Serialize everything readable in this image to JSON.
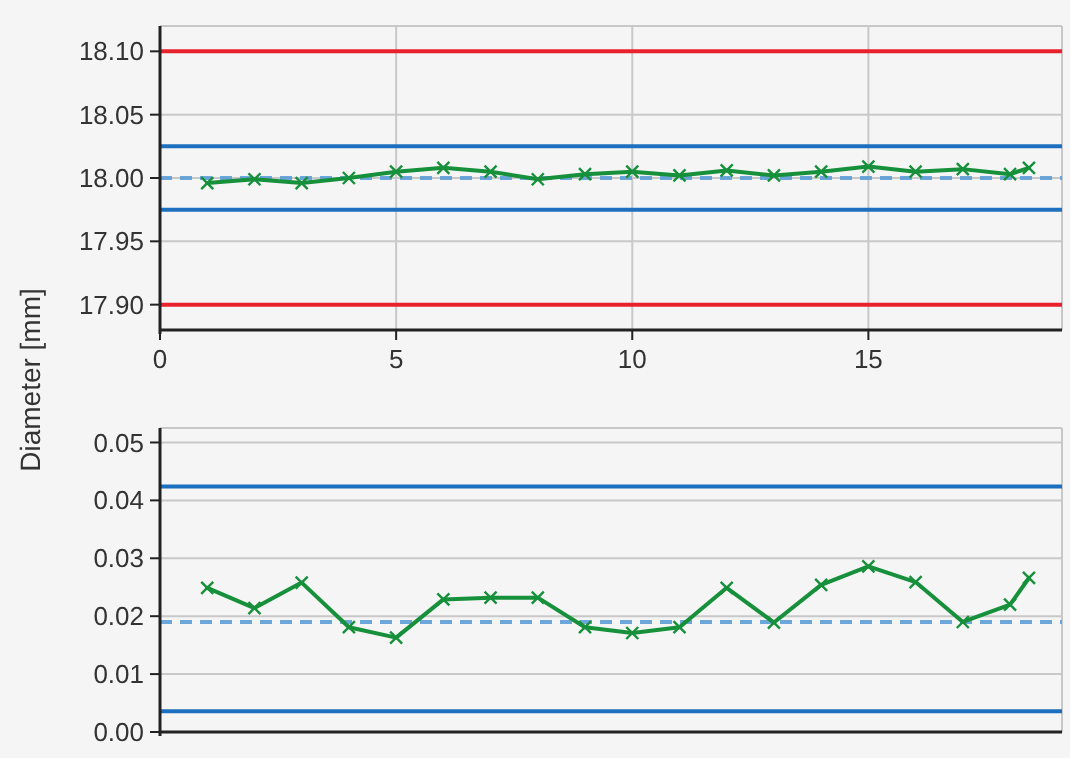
{
  "chart_data": [
    {
      "type": "line",
      "x": [
        1,
        2,
        3,
        4,
        5,
        6,
        7,
        8,
        9,
        10,
        11,
        12,
        13,
        14,
        15,
        16,
        17,
        18,
        18.4
      ],
      "series": [
        {
          "color": "#16903a",
          "values": [
            17.996,
            17.999,
            17.996,
            18.0,
            18.005,
            18.008,
            18.005,
            17.999,
            18.003,
            18.005,
            18.002,
            18.006,
            18.002,
            18.005,
            18.009,
            18.005,
            18.007,
            18.003,
            18.008
          ]
        }
      ],
      "marker": "cross",
      "xlim": [
        0,
        19.1
      ],
      "xticks": [
        0,
        5,
        10,
        15
      ],
      "ylim": [
        17.88,
        18.12
      ],
      "yticks": [
        {
          "value": 17.9,
          "label": "17.90"
        },
        {
          "value": 17.95,
          "label": "17.95"
        },
        {
          "value": 18.0,
          "label": "18.00"
        },
        {
          "value": 18.05,
          "label": "18.05"
        },
        {
          "value": 18.1,
          "label": "18.10"
        }
      ],
      "grid": true,
      "ref_lines": [
        {
          "axis": "y",
          "value": 18.1,
          "color": "#e8222d",
          "line_style": "solid"
        },
        {
          "axis": "y",
          "value": 17.9,
          "color": "#e8222d",
          "line_style": "solid"
        },
        {
          "axis": "y",
          "value": 18.025,
          "color": "#1d6fbf",
          "line_style": "solid"
        },
        {
          "axis": "y",
          "value": 17.975,
          "color": "#1d6fbf",
          "line_style": "solid"
        },
        {
          "axis": "y",
          "value": 18.0,
          "color": "#5d9fd8",
          "line_style": "dashed"
        }
      ]
    },
    {
      "type": "line",
      "x": [
        1,
        2,
        3,
        4,
        5,
        6,
        7,
        8,
        9,
        10,
        11,
        12,
        13,
        14,
        15,
        16,
        17,
        18,
        18.4
      ],
      "series": [
        {
          "color": "#16903a",
          "values": [
            0.0249,
            0.0214,
            0.0258,
            0.0181,
            0.0163,
            0.0229,
            0.0232,
            0.0232,
            0.0181,
            0.0171,
            0.0181,
            0.0249,
            0.0189,
            0.0254,
            0.0286,
            0.0259,
            0.019,
            0.022,
            0.0266
          ]
        }
      ],
      "marker": "cross",
      "xlim": [
        0,
        19.1
      ],
      "ylim": [
        0,
        0.0525
      ],
      "yticks": [
        {
          "value": 0,
          "label": "0.00"
        },
        {
          "value": 0.01,
          "label": "0.01"
        },
        {
          "value": 0.02,
          "label": "0.02"
        },
        {
          "value": 0.03,
          "label": "0.03"
        },
        {
          "value": 0.04,
          "label": "0.04"
        },
        {
          "value": 0.05,
          "label": "0.05"
        }
      ],
      "grid": "y",
      "tick_labels": "y",
      "ylabel": "Diameter [mm]",
      "ref_lines": [
        {
          "axis": "y",
          "value": 0.0424,
          "color": "#1d6fbf",
          "line_style": "solid"
        },
        {
          "axis": "y",
          "value": 0.0036,
          "color": "#1d6fbf",
          "line_style": "solid"
        },
        {
          "axis": "y",
          "value": 0.019,
          "color": "#5d9fd8",
          "line_style": "dashed"
        }
      ]
    }
  ]
}
